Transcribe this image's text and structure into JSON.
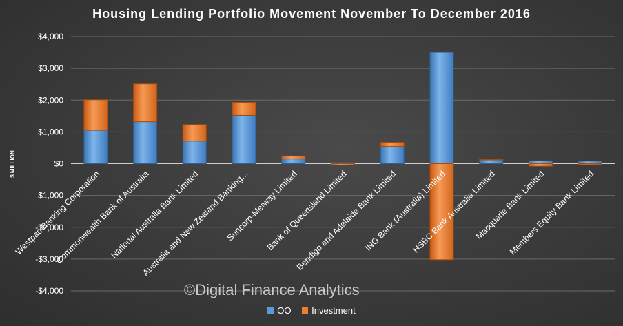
{
  "chart_data": {
    "type": "bar",
    "stacked": true,
    "title": "Housing Lending Portfolio Movement November To December 2016",
    "ylabel": "$ MILLION",
    "xlabel": "",
    "ylim": [
      -4000,
      4000
    ],
    "yticks": [
      4000,
      3000,
      2000,
      1000,
      0,
      -1000,
      -2000,
      -3000,
      -4000
    ],
    "ytick_labels": [
      "$4,000",
      "$3,000",
      "$2,000",
      "$1,000",
      "$0",
      "-$1,000",
      "-$2,000",
      "-$3,000",
      "-$4,000"
    ],
    "grid": true,
    "legend_position": "bottom",
    "categories": [
      "Westpac Banking Corporation",
      "Commonwealth Bank of Australia",
      "National Australia Bank Limited",
      "Australia and New Zealand Banking...",
      "Suncorp-Metway Limited",
      "Bank of Queensland Limited",
      "Bendigo and Adelaide Bank Limited",
      "ING Bank (Australia) Limited",
      "HSBC Bank Australia Limited",
      "Macquarie Bank Limited",
      "Members Equity Bank Limited"
    ],
    "series": [
      {
        "name": "OO",
        "color": "#5b9bd5",
        "values": [
          1050,
          1320,
          710,
          1520,
          150,
          40,
          540,
          3500,
          120,
          90,
          80
        ]
      },
      {
        "name": "Investment",
        "color": "#ed7d31",
        "values": [
          960,
          1190,
          520,
          410,
          90,
          -40,
          130,
          -3020,
          20,
          -80,
          -30
        ]
      }
    ]
  },
  "watermark": "©Digital Finance Analytics"
}
